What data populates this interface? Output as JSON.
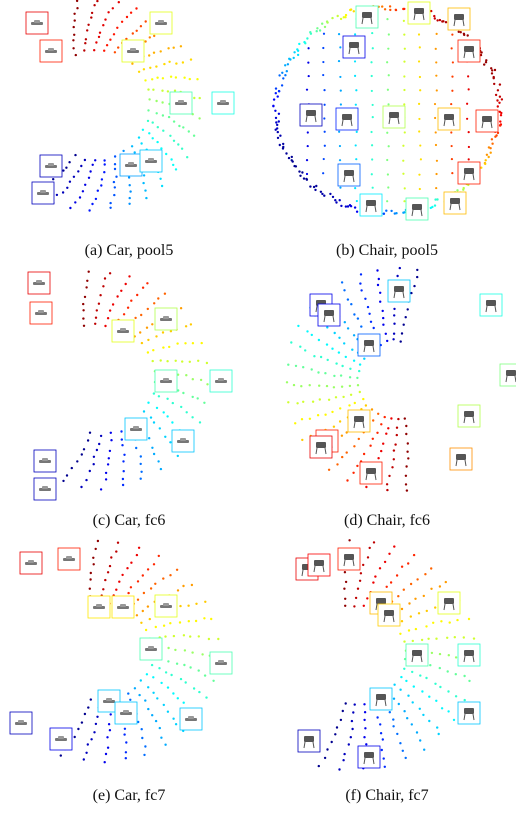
{
  "figure": {
    "panels": [
      {
        "id": "a",
        "caption": "(a) Car, pool5",
        "object": "car",
        "shape": "arc-right",
        "thumb_icon": "car-thumbnail-icon"
      },
      {
        "id": "b",
        "caption": "(b) Chair, pool5",
        "object": "chair",
        "shape": "ellipse-grid",
        "thumb_icon": "chair-thumbnail-icon"
      },
      {
        "id": "c",
        "caption": "(c) Car, fc6",
        "object": "car",
        "shape": "arc-right",
        "thumb_icon": "car-thumbnail-icon"
      },
      {
        "id": "d",
        "caption": "(d) Chair, fc6",
        "object": "chair",
        "shape": "arc-left",
        "thumb_icon": "chair-thumbnail-icon"
      },
      {
        "id": "e",
        "caption": "(e) Car, fc7",
        "object": "car",
        "shape": "arc-right",
        "thumb_icon": "car-thumbnail-icon"
      },
      {
        "id": "f",
        "caption": "(f) Chair, fc7",
        "object": "chair",
        "shape": "arc-right",
        "thumb_icon": "chair-thumbnail-icon"
      }
    ],
    "colormap": "jet",
    "colors": [
      "#00008f",
      "#0000ff",
      "#00a0ff",
      "#00ffff",
      "#7fff7f",
      "#ffff00",
      "#ff9000",
      "#ff0000",
      "#8f0000"
    ]
  }
}
